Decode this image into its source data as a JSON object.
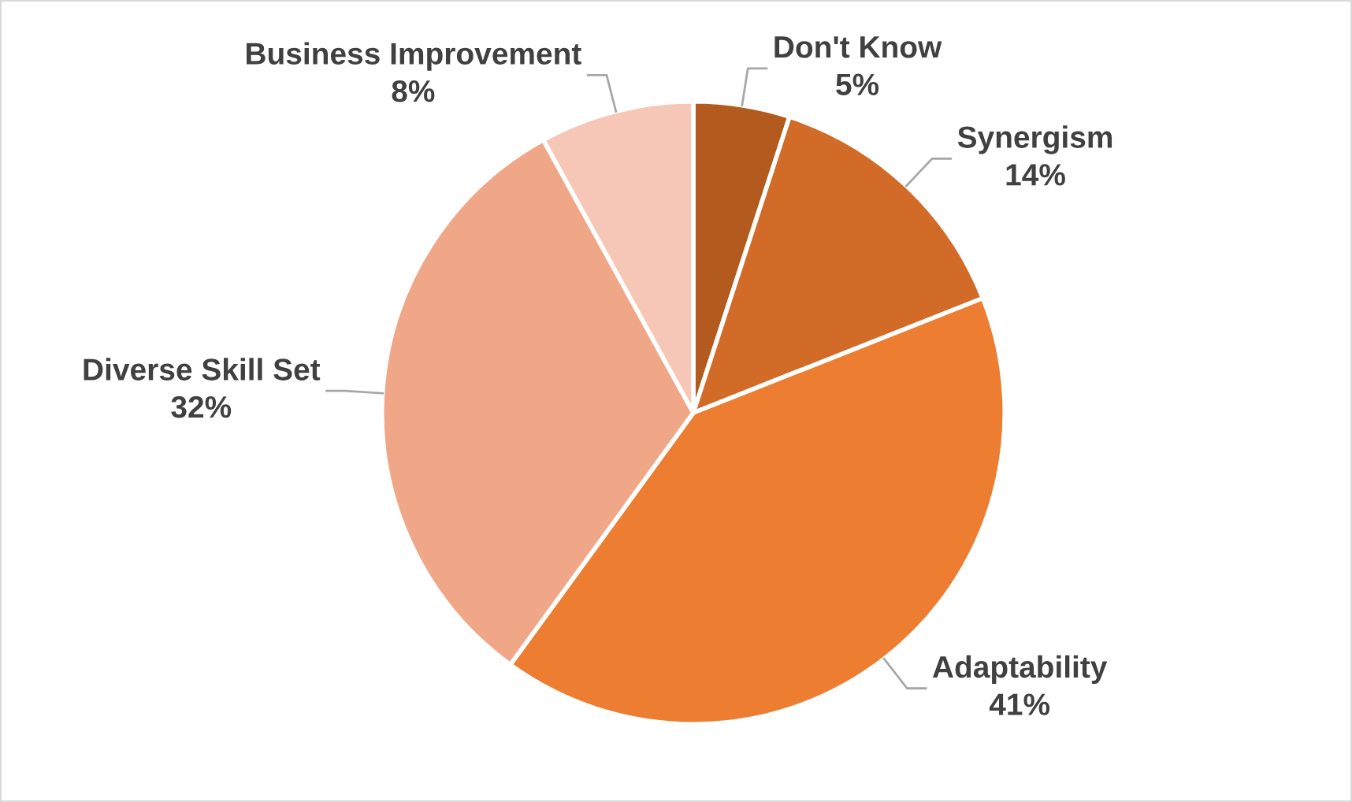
{
  "chart_data": {
    "type": "pie",
    "categories": [
      "Don't Know",
      "Synergism",
      "Adaptability",
      "Diverse Skill Set",
      "Business Improvement"
    ],
    "values": [
      5,
      14,
      41,
      32,
      8
    ],
    "value_labels": [
      "5%",
      "14%",
      "41%",
      "32%",
      "8%"
    ],
    "colors": [
      "#b35a1f",
      "#d26b28",
      "#ed7d31",
      "#f0a788",
      "#f6c7b7"
    ],
    "legend": false
  }
}
